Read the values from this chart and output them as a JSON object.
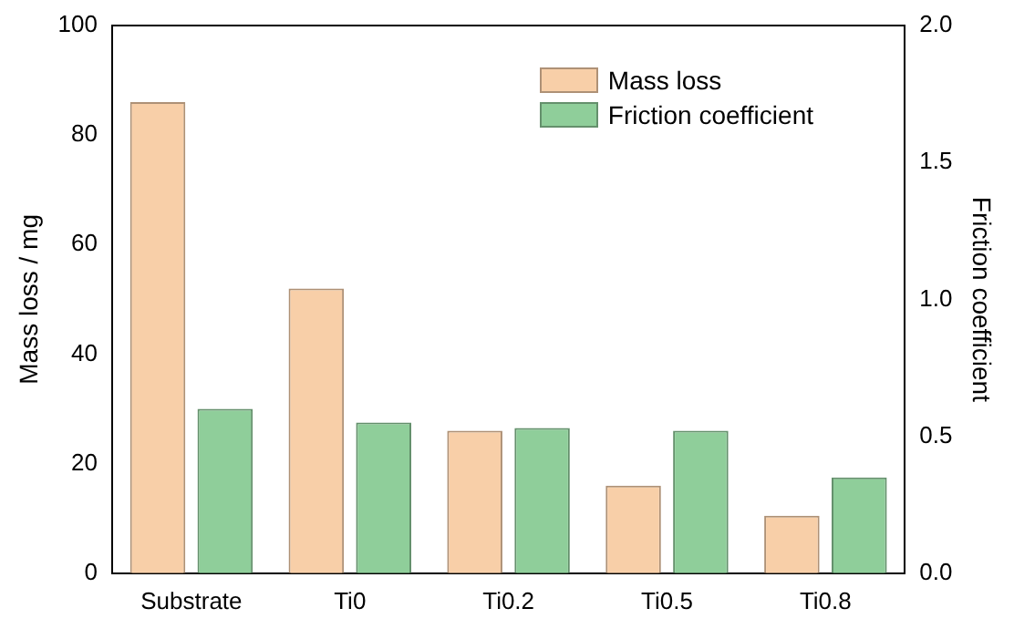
{
  "chart_data": {
    "type": "bar",
    "ylabel": "Mass loss / mg",
    "y2label": "Friction coefficient",
    "categories": [
      "Substrate",
      "Ti0",
      "Ti0.2",
      "Ti0.5",
      "Ti0.8"
    ],
    "series": [
      {
        "name": "Mass loss",
        "color": "#f8cfa8",
        "values": [
          86,
          52,
          26,
          16,
          10.5
        ]
      },
      {
        "name": "Friction coefficient",
        "color": "#8fce9a",
        "axis": "y2",
        "values": [
          0.6,
          0.55,
          0.53,
          0.52,
          0.35
        ]
      }
    ],
    "ylim": [
      0,
      100
    ],
    "yticks": [
      0,
      20,
      40,
      60,
      80,
      100
    ],
    "y2lim": [
      0,
      2
    ],
    "y2ticks": [
      {
        "value": 0,
        "label": "0.0"
      },
      {
        "value": 0.5,
        "label": "0.5"
      },
      {
        "value": 1,
        "label": "1.0"
      },
      {
        "value": 1.5,
        "label": "1.5"
      },
      {
        "value": 2,
        "label": "2.0"
      }
    ],
    "grid": false,
    "legend": "top right"
  }
}
